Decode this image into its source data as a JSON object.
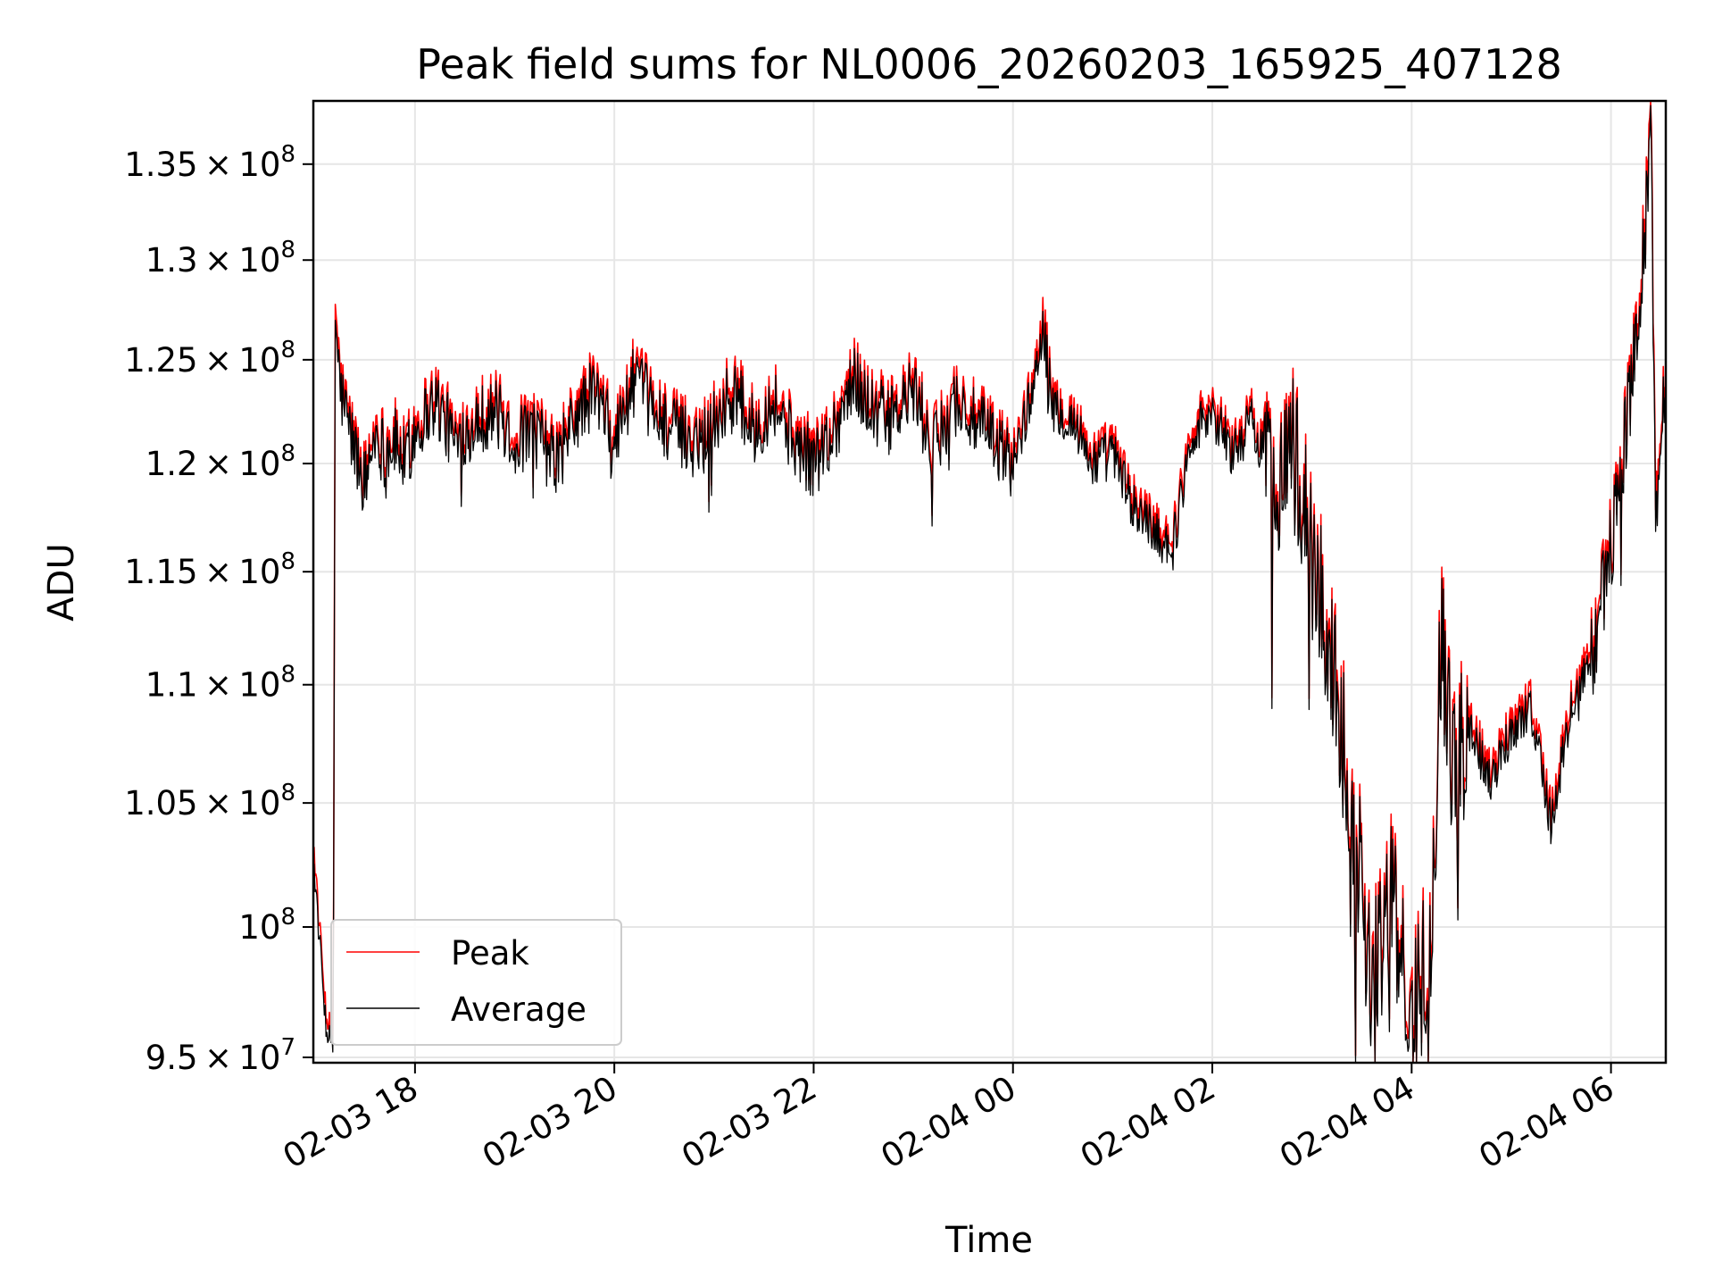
{
  "chart_data": {
    "type": "line",
    "title": "Peak field sums for NL0006_20260203_165925_407128",
    "xlabel": "Time",
    "ylabel": "ADU",
    "yscale": "log",
    "ylim": [
      94800000,
      138400000
    ],
    "xlim_hours": [
      -1.02,
      12.55
    ],
    "grid": true,
    "legend_position": "lower-left",
    "x_ticks": [
      {
        "label": "02-03 18",
        "hour": 0
      },
      {
        "label": "02-03 20",
        "hour": 2
      },
      {
        "label": "02-03 22",
        "hour": 4
      },
      {
        "label": "02-04 00",
        "hour": 6
      },
      {
        "label": "02-04 02",
        "hour": 8
      },
      {
        "label": "02-04 04",
        "hour": 10
      },
      {
        "label": "02-04 06",
        "hour": 12
      }
    ],
    "y_ticks": [
      {
        "value": 95000000,
        "mant": "9.5",
        "exp": "7"
      },
      {
        "value": 100000000,
        "mant": "",
        "exp": "8"
      },
      {
        "value": 105000000,
        "mant": "1.05",
        "exp": "8"
      },
      {
        "value": 110000000,
        "mant": "1.1",
        "exp": "8"
      },
      {
        "value": 115000000,
        "mant": "1.15",
        "exp": "8"
      },
      {
        "value": 120000000,
        "mant": "1.2",
        "exp": "8"
      },
      {
        "value": 125000000,
        "mant": "1.25",
        "exp": "8"
      },
      {
        "value": 130000000,
        "mant": "1.3",
        "exp": "8"
      },
      {
        "value": 135000000,
        "mant": "1.35",
        "exp": "8"
      }
    ],
    "series": [
      {
        "name": "Peak",
        "color": "#ff0000",
        "x": [
          -1.02,
          -0.95,
          -0.9,
          -0.85,
          -0.82,
          -0.8,
          -0.75,
          -0.7,
          -0.6,
          -0.5,
          -0.4,
          -0.3,
          -0.2,
          -0.1,
          0.0,
          0.2,
          0.4,
          0.6,
          0.8,
          1.0,
          1.2,
          1.4,
          1.6,
          1.8,
          2.0,
          2.2,
          2.4,
          2.6,
          2.8,
          3.0,
          3.2,
          3.4,
          3.6,
          3.8,
          4.0,
          4.2,
          4.4,
          4.6,
          4.8,
          5.0,
          5.2,
          5.4,
          5.6,
          5.8,
          6.0,
          6.2,
          6.3,
          6.4,
          6.6,
          6.8,
          7.0,
          7.2,
          7.4,
          7.6,
          7.8,
          8.0,
          8.2,
          8.4,
          8.6,
          8.8,
          9.0,
          9.2,
          9.4,
          9.6,
          9.8,
          10.0,
          10.2,
          10.3,
          10.4,
          10.6,
          10.8,
          11.0,
          11.2,
          11.4,
          11.6,
          11.8,
          12.0,
          12.2,
          12.3,
          12.35,
          12.4,
          12.45,
          12.5,
          12.55
        ],
        "y": [
          103500000,
          99500000,
          97000000,
          96000000,
          95500000,
          128000000,
          124000000,
          123000000,
          121000000,
          119500000,
          122000000,
          121000000,
          121500000,
          120500000,
          122000000,
          123500000,
          121500000,
          122500000,
          123000000,
          121500000,
          122000000,
          120500000,
          122500000,
          124000000,
          121500000,
          124500000,
          123000000,
          122000000,
          121500000,
          122500000,
          124000000,
          122000000,
          123500000,
          121500000,
          120500000,
          122000000,
          124500000,
          123000000,
          122500000,
          124000000,
          121000000,
          123500000,
          122500000,
          121500000,
          120500000,
          124000000,
          127500000,
          123000000,
          122500000,
          120500000,
          121000000,
          118500000,
          117500000,
          116500000,
          122000000,
          123000000,
          121000000,
          122500000,
          119500000,
          121500000,
          116000000,
          111500000,
          105500000,
          98500000,
          101500000,
          96500000,
          100500000,
          113000000,
          107000000,
          108500000,
          106500000,
          108500000,
          109500000,
          104500000,
          109500000,
          111500000,
          116500000,
          124000000,
          129500000,
          132500000,
          137800000,
          118000000,
          121500000,
          124500000
        ]
      },
      {
        "name": "Average",
        "color": "#000000",
        "x": [
          -1.02,
          -0.95,
          -0.9,
          -0.85,
          -0.82,
          -0.8,
          -0.75,
          -0.7,
          -0.6,
          -0.5,
          -0.4,
          -0.3,
          -0.2,
          -0.1,
          0.0,
          0.2,
          0.4,
          0.6,
          0.8,
          1.0,
          1.2,
          1.4,
          1.6,
          1.8,
          2.0,
          2.2,
          2.4,
          2.6,
          2.8,
          3.0,
          3.2,
          3.4,
          3.6,
          3.8,
          4.0,
          4.2,
          4.4,
          4.6,
          4.8,
          5.0,
          5.2,
          5.4,
          5.6,
          5.8,
          6.0,
          6.2,
          6.3,
          6.4,
          6.6,
          6.8,
          7.0,
          7.2,
          7.4,
          7.6,
          7.8,
          8.0,
          8.2,
          8.4,
          8.6,
          8.8,
          9.0,
          9.2,
          9.4,
          9.6,
          9.8,
          10.0,
          10.2,
          10.3,
          10.4,
          10.6,
          10.8,
          11.0,
          11.2,
          11.4,
          11.6,
          11.8,
          12.0,
          12.2,
          12.3,
          12.35,
          12.4,
          12.45,
          12.5,
          12.55
        ],
        "y": [
          102800000,
          99000000,
          96500000,
          95500000,
          95200000,
          127200000,
          123500000,
          122500000,
          120500000,
          119000000,
          121500000,
          120500000,
          121000000,
          120000000,
          121500000,
          123000000,
          121000000,
          122000000,
          122500000,
          121000000,
          121500000,
          120000000,
          122000000,
          123500000,
          121000000,
          124000000,
          122500000,
          121500000,
          121000000,
          122000000,
          123500000,
          121500000,
          123000000,
          121000000,
          120000000,
          121500000,
          124000000,
          122500000,
          122000000,
          123500000,
          120500000,
          123000000,
          122000000,
          121000000,
          120000000,
          123500000,
          126800000,
          122500000,
          122000000,
          120000000,
          120500000,
          118000000,
          117000000,
          116000000,
          121500000,
          122500000,
          120500000,
          122000000,
          119000000,
          121000000,
          115500000,
          111000000,
          105000000,
          98000000,
          101000000,
          96000000,
          100000000,
          112500000,
          106500000,
          108000000,
          106000000,
          108000000,
          109000000,
          104000000,
          109000000,
          111000000,
          116000000,
          123500000,
          128800000,
          131800000,
          136800000,
          117000000,
          121000000,
          124000000
        ]
      }
    ]
  }
}
